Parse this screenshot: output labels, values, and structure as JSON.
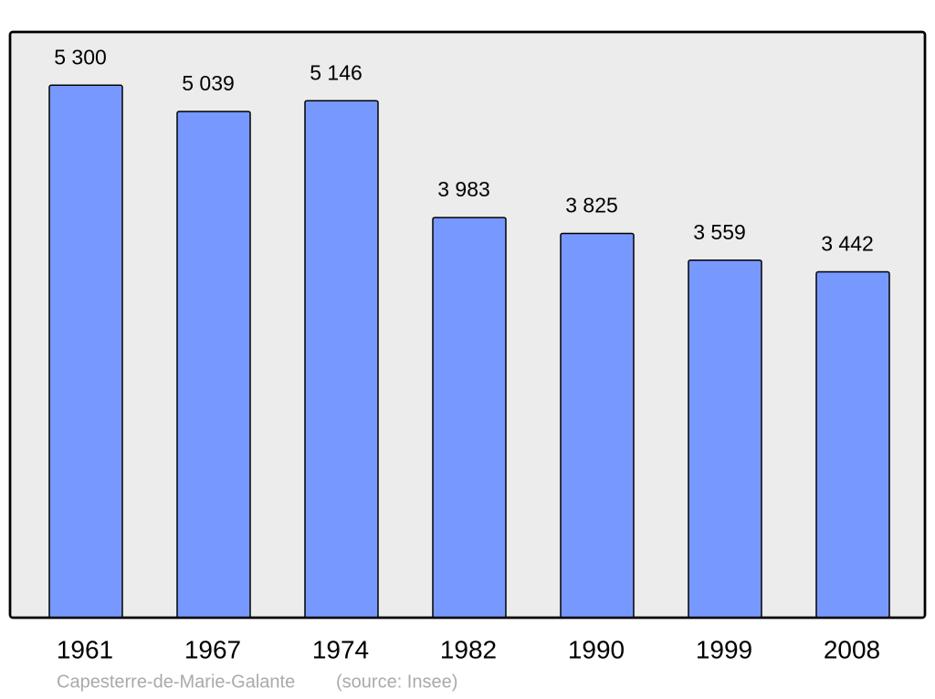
{
  "chart_data": {
    "type": "bar",
    "categories": [
      "1961",
      "1967",
      "1974",
      "1982",
      "1990",
      "1999",
      "2008"
    ],
    "values": [
      5300,
      5039,
      5146,
      3983,
      3825,
      3559,
      3442
    ],
    "value_labels": [
      "5 300",
      "5 039",
      "5 146",
      "3 983",
      "3 825",
      "3 559",
      "3 442"
    ],
    "color": "#7799ff",
    "ylim": [
      0,
      5830
    ],
    "caption": "Capesterre-de-Marie-Galante",
    "source": "(source: Insee)"
  }
}
